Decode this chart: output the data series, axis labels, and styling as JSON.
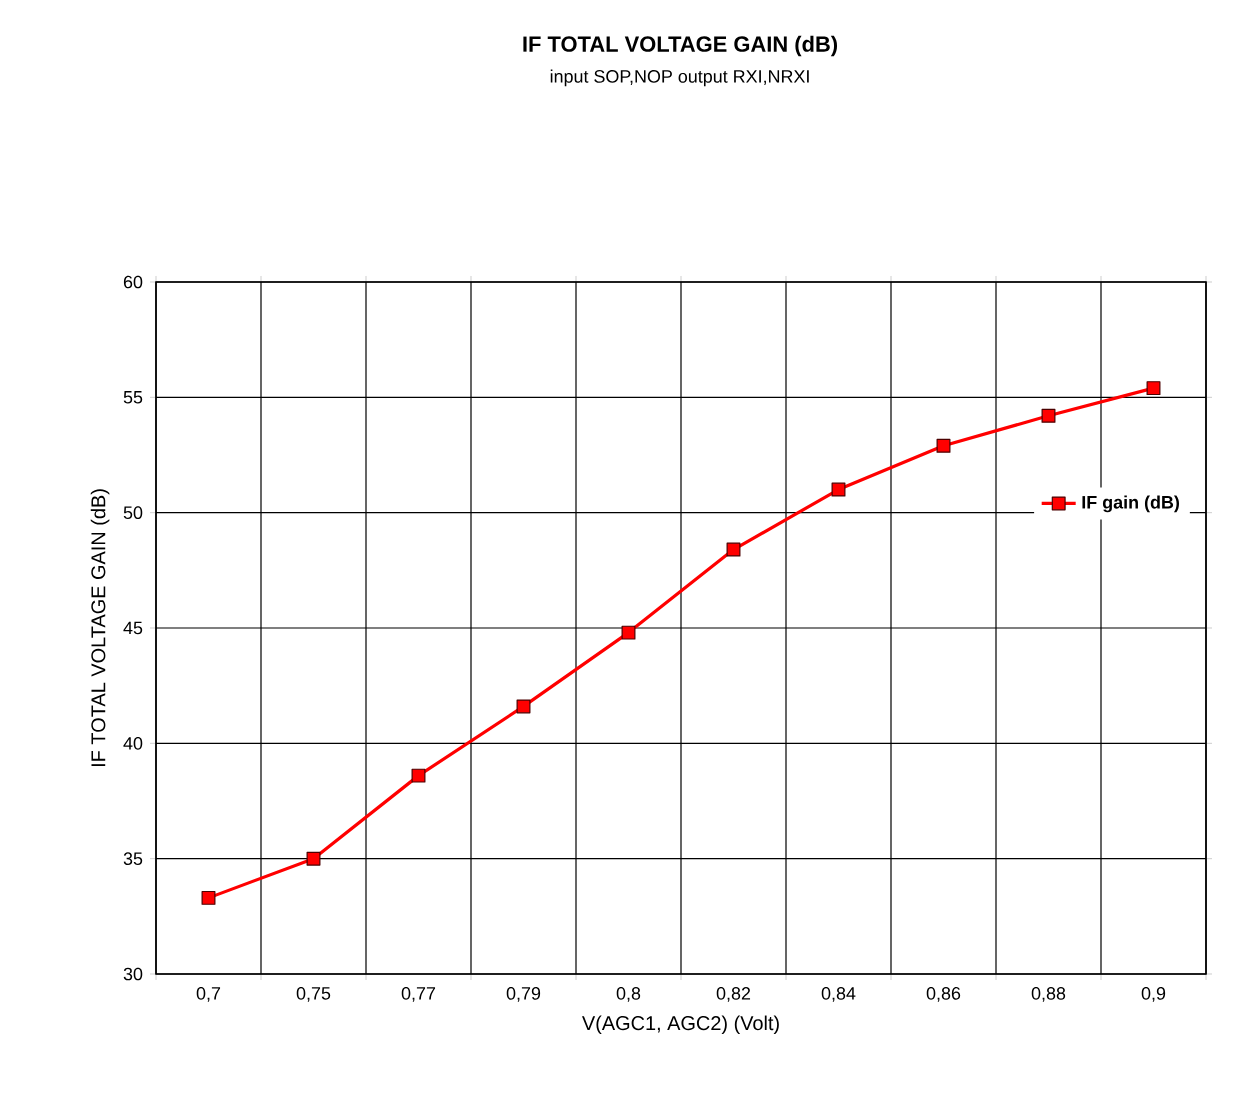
{
  "chart_data": {
    "type": "line",
    "title": "IF TOTAL VOLTAGE GAIN (dB)",
    "subtitle": "input SOP,NOP output RXI,NRXI",
    "xlabel": "V(AGC1, AGC2) (Volt)",
    "ylabel": "IF TOTAL VOLTAGE GAIN (dB)",
    "categories": [
      "0,7",
      "0,75",
      "0,77",
      "0,79",
      "0,8",
      "0,82",
      "0,84",
      "0,86",
      "0,88",
      "0,9"
    ],
    "series": [
      {
        "name": "IF gain (dB)",
        "color": "#ff0000",
        "values": [
          33.3,
          35.0,
          38.6,
          41.6,
          44.8,
          48.4,
          51.0,
          52.9,
          54.2,
          55.4
        ]
      }
    ],
    "ylim": [
      30,
      60
    ],
    "yticks": [
      30,
      35,
      40,
      45,
      50,
      55,
      60
    ],
    "grid": true,
    "legend": "right",
    "marker": "square",
    "line_style": "solid"
  }
}
